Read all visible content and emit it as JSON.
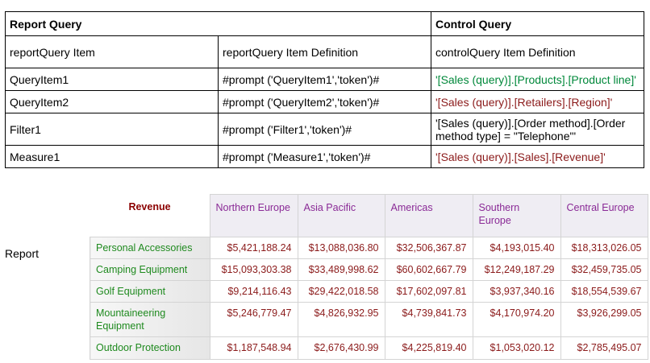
{
  "query_table": {
    "header": {
      "report_query": "Report Query",
      "control_query": "Control Query"
    },
    "rows": [
      {
        "name": "reportQuery Item",
        "report": "reportQuery Item Definition",
        "control": "controlQuery Item Definition"
      },
      {
        "name": "QueryItem1",
        "report": "#prompt ('QueryItem1','token')#",
        "control": "'[Sales (query)].[Products].[Product line]'"
      },
      {
        "name": "QueryItem2",
        "report": "#prompt ('QueryItem2','token')#",
        "control": "'[Sales (query)].[Retailers].[Region]'"
      },
      {
        "name": "Filter1",
        "report": "#prompt ('Filter1','token')#",
        "control": "'[Sales (query)].[Order method].[Order method type] = \"Telephone\"'"
      },
      {
        "name": "Measure1",
        "report": "#prompt ('Measure1','token')#",
        "control": "'[Sales (query)].[Sales].[Revenue]'"
      }
    ]
  },
  "report_label": "Report",
  "crosstab": {
    "measure": "Revenue",
    "columns": [
      "Northern Europe",
      "Asia Pacific",
      "Americas",
      "Southern Europe",
      "Central Europe"
    ],
    "rows": [
      {
        "label": "Personal Accessories",
        "values": [
          "$5,421,188.24",
          "$13,088,036.80",
          "$32,506,367.87",
          "$4,193,015.40",
          "$18,313,026.05"
        ]
      },
      {
        "label": "Camping Equipment",
        "values": [
          "$15,093,303.38",
          "$33,489,998.62",
          "$60,602,667.79",
          "$12,249,187.29",
          "$32,459,735.05"
        ]
      },
      {
        "label": "Golf Equipment",
        "values": [
          "$9,214,116.43",
          "$29,422,018.58",
          "$17,602,097.81",
          "$3,937,340.16",
          "$18,554,539.67"
        ]
      },
      {
        "label": "Mountaineering Equipment",
        "values": [
          "$5,246,779.47",
          "$4,826,932.95",
          "$4,739,841.73",
          "$4,170,974.20",
          "$3,926,299.05"
        ]
      },
      {
        "label": "Outdoor Protection",
        "values": [
          "$1,187,548.94",
          "$2,676,430.99",
          "$4,225,819.40",
          "$1,053,020.12",
          "$2,785,495.07"
        ]
      }
    ]
  },
  "colors": {
    "control_green": "#00883a",
    "control_maroon": "#8b1a1a",
    "measure_text": "#8b0000",
    "column_header_text": "#8a2a96",
    "row_header_text": "#1f8a1f",
    "value_text": "#8b1a1a"
  }
}
